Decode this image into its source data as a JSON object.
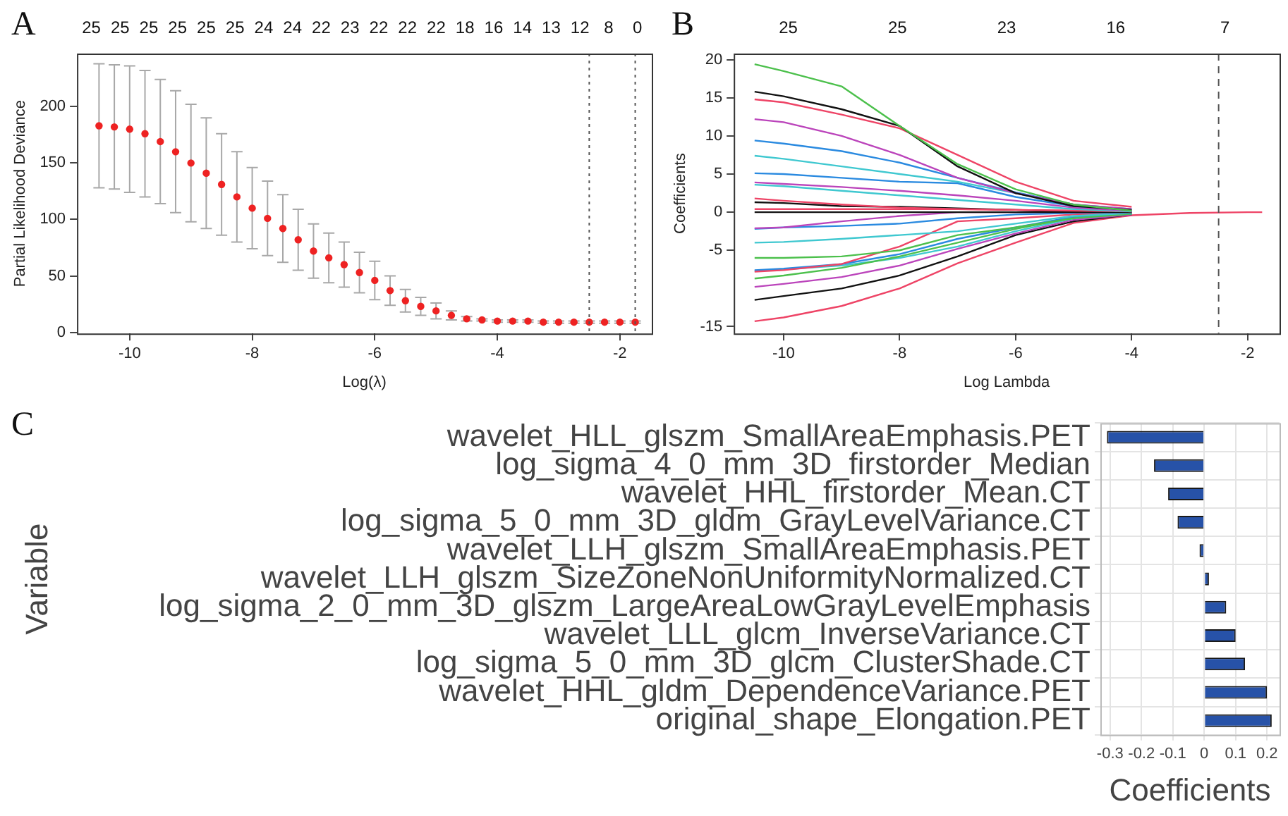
{
  "chart_data": [
    {
      "type": "scatter",
      "annotations": [
        "A",
        "25",
        "25",
        "25",
        "25",
        "25",
        "25",
        "24",
        "24",
        "22",
        "23",
        "22",
        "22",
        "22",
        "18",
        "16",
        "14",
        "13",
        "12",
        "8",
        "0"
      ],
      "xlabel": "Log(λ)",
      "ylabel": "Partial Likelihood Deviance",
      "marker": "circle",
      "grid": false,
      "xlim": [
        -10.86,
        -1.48
      ],
      "xticks": [
        -10,
        -8,
        -6,
        -4,
        -2
      ],
      "ylim": [
        -1,
        247
      ],
      "yticks": [
        0,
        50,
        100,
        150,
        200
      ],
      "ref_lines": [
        {
          "axis": "x",
          "value": -2.5,
          "color": "#555555",
          "line_style": "dotted"
        },
        {
          "axis": "x",
          "value": -1.75,
          "color": "#555555",
          "line_style": "dotted"
        }
      ],
      "series": [
        {
          "type": "scatter",
          "color": "#ee2222",
          "x": [
            -10.5,
            -10.25,
            -10,
            -9.75,
            -9.5,
            -9.25,
            -9,
            -8.75,
            -8.5,
            -8.25,
            -8,
            -7.75,
            -7.5,
            -7.25,
            -7,
            -6.75,
            -6.5,
            -6.25,
            -6,
            -5.75,
            -5.5,
            -5.25,
            -5,
            -4.75,
            -4.5,
            -4.25,
            -4,
            -3.75,
            -3.5,
            -3.25,
            -3,
            -2.75,
            -2.5,
            -2.25,
            -2,
            -1.75
          ],
          "values": [
            183,
            182,
            180,
            176,
            169,
            160,
            150,
            141,
            131,
            120,
            110,
            101,
            92,
            82,
            72,
            66,
            60,
            53,
            46,
            37,
            28,
            23,
            19,
            15,
            12,
            11,
            10,
            10,
            10,
            9,
            9,
            9,
            9,
            9,
            9,
            9
          ],
          "errors": [
            [
              128,
              238
            ],
            [
              127,
              237
            ],
            [
              124,
              236
            ],
            [
              120,
              232
            ],
            [
              114,
              224
            ],
            [
              106,
              214
            ],
            [
              98,
              202
            ],
            [
              92,
              190
            ],
            [
              86,
              176
            ],
            [
              80,
              160
            ],
            [
              74,
              146
            ],
            [
              68,
              134
            ],
            [
              62,
              122
            ],
            [
              55,
              109
            ],
            [
              48,
              96
            ],
            [
              44,
              88
            ],
            [
              40,
              80
            ],
            [
              35,
              71
            ],
            [
              29,
              63
            ],
            [
              24,
              50
            ],
            [
              18,
              38
            ],
            [
              15,
              31
            ],
            [
              12,
              26
            ],
            [
              11,
              19
            ],
            [
              10,
              14
            ],
            [
              10,
              12
            ],
            [
              9,
              11
            ],
            [
              9,
              11
            ],
            [
              9,
              11
            ],
            [
              8,
              10
            ],
            [
              8,
              10
            ],
            [
              8,
              10
            ],
            [
              8,
              10
            ],
            [
              8,
              10
            ],
            [
              8,
              10
            ],
            [
              8,
              10
            ]
          ]
        }
      ]
    },
    {
      "type": "line",
      "annotations": [
        "B",
        "25",
        "25",
        "23",
        "16",
        "7"
      ],
      "xlabel": "Log Lambda",
      "ylabel": "Coefficients",
      "marker": "none",
      "grid": false,
      "xlim": [
        -10.86,
        -1.45
      ],
      "xticks": [
        -10,
        -8,
        -6,
        -4,
        -2
      ],
      "ylim": [
        -15.9,
        20.8
      ],
      "yticks": [
        -15,
        -5,
        0,
        5,
        10,
        15,
        20
      ],
      "ref_lines": [
        {
          "axis": "x",
          "value": -2.5,
          "color": "#555555",
          "line_style": "dashed"
        }
      ],
      "x": [
        -10.5,
        -10,
        -9,
        -8,
        -7,
        -6,
        -5,
        -4,
        -3,
        -2,
        -1.75
      ],
      "series": [
        {
          "color": "#4cc04c",
          "values": [
            19.4,
            18.5,
            16.5,
            11.3,
            6.3,
            3,
            1,
            0.2,
            null,
            null,
            null
          ]
        },
        {
          "color": "#111111",
          "values": [
            15.8,
            15.2,
            13.5,
            11.3,
            6,
            2.5,
            0.8,
            0.3,
            null,
            null,
            null
          ]
        },
        {
          "color": "#ee4466",
          "values": [
            14.8,
            14.4,
            12.8,
            11,
            7.5,
            4,
            1.5,
            0.7,
            null,
            null,
            null
          ]
        },
        {
          "color": "#bb44bb",
          "values": [
            12.2,
            11.8,
            10,
            7.5,
            4.5,
            2.5,
            1,
            0.4,
            null,
            null,
            null
          ]
        },
        {
          "color": "#2a8ae0",
          "values": [
            9.4,
            9,
            8,
            6.5,
            4.5,
            2.6,
            1,
            0.4,
            null,
            null,
            null
          ]
        },
        {
          "color": "#3fc8d0",
          "values": [
            7.4,
            7,
            6,
            5,
            4,
            2.5,
            1,
            0.3,
            null,
            null,
            null
          ]
        },
        {
          "color": "#2a8ae0",
          "values": [
            5.1,
            5,
            4.5,
            4,
            3.8,
            2,
            0.8,
            0.3,
            null,
            null,
            null
          ]
        },
        {
          "color": "#bb44bb",
          "values": [
            3.9,
            3.7,
            3.3,
            2.8,
            2.2,
            1.5,
            0.6,
            0.2,
            null,
            null,
            null
          ]
        },
        {
          "color": "#3fc8d0",
          "values": [
            3.6,
            3.4,
            2.8,
            2.2,
            1.6,
            1,
            0.4,
            0.1,
            null,
            null,
            null
          ]
        },
        {
          "color": "#ee4466",
          "values": [
            1.8,
            1.5,
            1,
            0.6,
            0.4,
            0.3,
            0.2,
            0.1,
            null,
            null,
            null
          ]
        },
        {
          "color": "#111111",
          "values": [
            1.3,
            1.2,
            0.8,
            0.7,
            0.5,
            0.3,
            0.1,
            0,
            null,
            null,
            null
          ]
        },
        {
          "color": "#ee4466",
          "values": [
            0.4,
            0.4,
            0.4,
            0.4,
            0.4,
            0.3,
            0.2,
            0.1,
            null,
            null,
            null
          ]
        },
        {
          "color": "#111111",
          "values": [
            0,
            0,
            0,
            0,
            0,
            0,
            0,
            0,
            null,
            null,
            null
          ]
        },
        {
          "color": "#bb44bb",
          "values": [
            -2.1,
            -2,
            -1.2,
            -0.5,
            0,
            0,
            0,
            0,
            null,
            null,
            null
          ]
        },
        {
          "color": "#2a8ae0",
          "values": [
            -2.2,
            -2,
            -1.8,
            -1.5,
            -0.8,
            -0.3,
            -0.1,
            0,
            null,
            null,
            null
          ]
        },
        {
          "color": "#3fc8d0",
          "values": [
            -4,
            -3.9,
            -3.5,
            -3,
            -2.5,
            -1.5,
            -0.5,
            -0.1,
            null,
            null,
            null
          ]
        },
        {
          "color": "#4cc04c",
          "values": [
            -6,
            -6,
            -5.8,
            -5,
            -3,
            -2,
            -0.8,
            -0.2,
            null,
            null,
            null
          ]
        },
        {
          "color": "#ee4466",
          "values": [
            -7.8,
            -7.6,
            -6.8,
            -4.5,
            -1.2,
            -0.8,
            -0.3,
            -0.1,
            null,
            null,
            null
          ]
        },
        {
          "color": "#2a8ae0",
          "values": [
            -7.6,
            -7.4,
            -6.8,
            -5.5,
            -3.5,
            -2,
            -0.6,
            -0.2,
            null,
            null,
            null
          ]
        },
        {
          "color": "#4cc04c",
          "values": [
            -8.7,
            -8.3,
            -7.3,
            -5.8,
            -4,
            -2.2,
            -0.7,
            -0.2,
            null,
            null,
            null
          ]
        },
        {
          "color": "#3fc8d0",
          "values": [
            -7.7,
            -7.5,
            -7,
            -6,
            -4.5,
            -2.5,
            -0.8,
            -0.2,
            null,
            null,
            null
          ]
        },
        {
          "color": "#bb44bb",
          "values": [
            -9.8,
            -9.4,
            -8.5,
            -7,
            -4.8,
            -2.8,
            -1,
            -0.3,
            null,
            null,
            null
          ]
        },
        {
          "color": "#111111",
          "values": [
            -11.5,
            -11,
            -10,
            -8.3,
            -5.8,
            -3,
            -1.2,
            -0.3,
            null,
            null,
            null
          ]
        },
        {
          "color": "#ee4466",
          "values": [
            -14.3,
            -13.8,
            -12.3,
            -10,
            -6.7,
            -4,
            -1.4,
            -0.4,
            -0.1,
            0,
            0
          ]
        }
      ]
    },
    {
      "type": "bar",
      "orientation": "horizontal",
      "annotations": [
        "C"
      ],
      "xlabel": "Coefficients",
      "ylabel": "Variable",
      "grid": true,
      "categories": [
        "wavelet_HLL_glszm_SmallAreaEmphasis.PET",
        "log_sigma_4_0_mm_3D_firstorder_Median",
        "wavelet_HHL_firstorder_Mean.CT",
        "log_sigma_5_0_mm_3D_gldm_GrayLevelVariance.CT",
        "wavelet_LLH_glszm_SmallAreaEmphasis.PET",
        "wavelet_LLH_glszm_SizeZoneNonUniformityNormalized.CT",
        "log_sigma_2_0_mm_3D_glszm_LargeAreaLowGrayLevelEmphasis",
        "wavelet_LLL_glcm_InverseVariance.CT",
        "log_sigma_5_0_mm_3D_glcm_ClusterShade.CT",
        "wavelet_HHL_gldm_DependenceVariance.PET",
        "original_shape_Elongation.PET"
      ],
      "values": [
        -0.31,
        -0.16,
        -0.115,
        -0.085,
        -0.015,
        0.015,
        0.07,
        0.1,
        0.13,
        0.2,
        0.215
      ],
      "color": "#2752a8",
      "xlim": [
        -0.331,
        0.24
      ],
      "xticks": [
        -0.3,
        -0.2,
        -0.1,
        0,
        0.1,
        0.2
      ]
    }
  ]
}
